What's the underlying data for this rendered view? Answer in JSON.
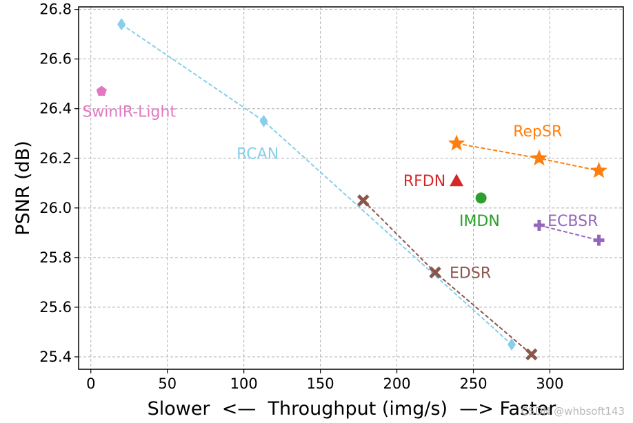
{
  "chart_data": {
    "type": "scatter",
    "title": "",
    "xlabel": "Slower  <—  Throughput (img/s)  —> Faster",
    "ylabel": "PSNR (dB)",
    "xlim": [
      -8,
      348
    ],
    "ylim": [
      25.35,
      26.81
    ],
    "x_ticks": [
      0,
      50,
      100,
      150,
      200,
      250,
      300
    ],
    "y_ticks": [
      25.4,
      25.6,
      25.8,
      26.0,
      26.2,
      26.4,
      26.6,
      26.8
    ],
    "x_tick_labels": [
      "0",
      "50",
      "100",
      "150",
      "200",
      "250",
      "300"
    ],
    "y_tick_labels": [
      "25.4",
      "25.6",
      "25.8",
      "26.0",
      "26.2",
      "26.4",
      "26.6",
      "26.8"
    ],
    "grid": true,
    "series": [
      {
        "name": "SwinIR-Light",
        "color": "#e377c2",
        "marker": "pentagon",
        "connected": false,
        "points": [
          {
            "x": 7,
            "y": 26.47
          }
        ]
      },
      {
        "name": "RCAN",
        "color": "#87ceeb",
        "marker": "thin-diamond",
        "connected": true,
        "points": [
          {
            "x": 20,
            "y": 26.74
          },
          {
            "x": 113,
            "y": 26.35
          },
          {
            "x": 275,
            "y": 25.45
          }
        ]
      },
      {
        "name": "EDSR",
        "color": "#8c564b",
        "marker": "x-filled",
        "connected": true,
        "points": [
          {
            "x": 178,
            "y": 26.03
          },
          {
            "x": 225,
            "y": 25.74
          },
          {
            "x": 288,
            "y": 25.41
          }
        ]
      },
      {
        "name": "RFDN",
        "color": "#d62728",
        "marker": "triangle",
        "connected": false,
        "points": [
          {
            "x": 239,
            "y": 26.11
          }
        ]
      },
      {
        "name": "IMDN",
        "color": "#2ca02c",
        "marker": "circle",
        "connected": false,
        "points": [
          {
            "x": 255,
            "y": 26.04
          }
        ]
      },
      {
        "name": "RepSR",
        "color": "#ff7f0e",
        "marker": "star",
        "connected": true,
        "points": [
          {
            "x": 239,
            "y": 26.26
          },
          {
            "x": 293,
            "y": 26.2
          },
          {
            "x": 332,
            "y": 26.15
          }
        ]
      },
      {
        "name": "ECBSR",
        "color": "#9467bd",
        "marker": "plus-filled",
        "connected": true,
        "points": [
          {
            "x": 293,
            "y": 25.93
          },
          {
            "x": 332,
            "y": 25.87
          }
        ]
      }
    ],
    "annotations": [
      {
        "text": "SwinIR-Light",
        "series": "SwinIR-Light",
        "x": 25,
        "y": 26.39,
        "color": "#e377c2"
      },
      {
        "text": "RCAN",
        "series": "RCAN",
        "x": 109,
        "y": 26.22,
        "color": "#87ceeb"
      },
      {
        "text": "EDSR",
        "series": "EDSR",
        "x": 248,
        "y": 25.74,
        "color": "#8c564b"
      },
      {
        "text": "RFDN",
        "series": "RFDN",
        "x": 218,
        "y": 26.11,
        "color": "#d62728"
      },
      {
        "text": "IMDN",
        "series": "IMDN",
        "x": 254,
        "y": 25.95,
        "color": "#2ca02c"
      },
      {
        "text": "RepSR",
        "series": "RepSR",
        "x": 292,
        "y": 26.31,
        "color": "#ff7f0e"
      },
      {
        "text": "ECBSR",
        "series": "ECBSR",
        "x": 315,
        "y": 25.95,
        "color": "#9467bd"
      }
    ]
  },
  "watermark": "CSDN @whbsoft143"
}
